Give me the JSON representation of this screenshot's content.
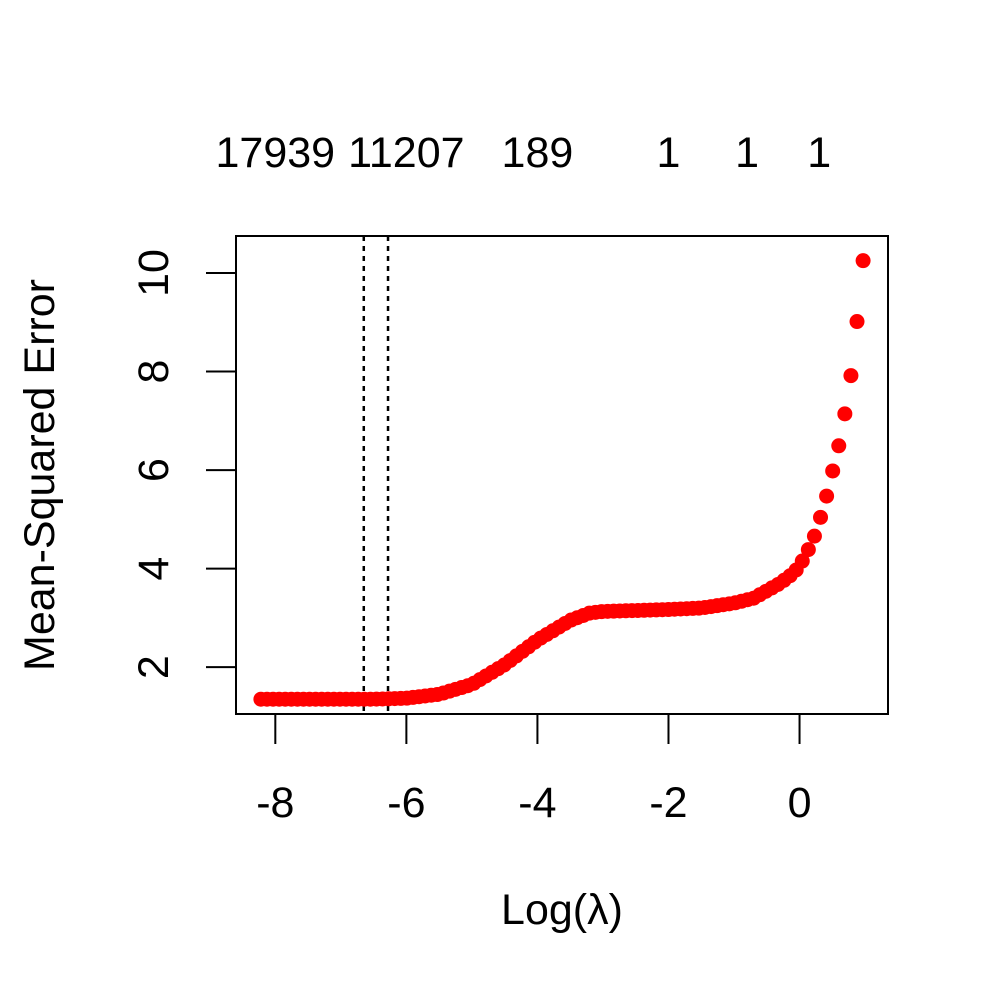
{
  "chart_data": {
    "type": "scatter",
    "xlabel": "Log(λ)",
    "ylabel": "Mean-Squared Error",
    "xlim": [
      -8.6,
      1.35
    ],
    "ylim": [
      1.05,
      10.75
    ],
    "x_ticks": [
      -8,
      -6,
      -4,
      -2,
      0
    ],
    "x_tick_labels": [
      "-8",
      "-6",
      "-4",
      "-2",
      "0"
    ],
    "y_ticks": [
      2,
      4,
      6,
      8,
      10
    ],
    "y_tick_labels": [
      "2",
      "4",
      "6",
      "8",
      "10"
    ],
    "top_axis_labels": [
      {
        "x": -8,
        "label": "17939"
      },
      {
        "x": -6,
        "label": "11207"
      },
      {
        "x": -4,
        "label": "189"
      },
      {
        "x": -2,
        "label": "1"
      },
      {
        "x": -0.8,
        "label": "1"
      },
      {
        "x": 0.3,
        "label": "1"
      }
    ],
    "reference_lines": [
      {
        "x": -6.65,
        "style": "dotted"
      },
      {
        "x": -6.28,
        "style": "dotted"
      }
    ],
    "point_color": "#ff0000",
    "grid": false,
    "series": [
      {
        "x_start": -8.22,
        "x_end": 0.97,
        "count": 100,
        "curve_x": [
          -8.22,
          -7.0,
          -6.5,
          -6.0,
          -5.5,
          -5.0,
          -4.5,
          -4.0,
          -3.5,
          -3.2,
          -3.0,
          -2.5,
          -2.0,
          -1.5,
          -1.0,
          -0.7,
          -0.5,
          -0.3,
          -0.1,
          0.0,
          0.1,
          0.2,
          0.3,
          0.4,
          0.5,
          0.6,
          0.7,
          0.8,
          0.88,
          0.97
        ],
        "curve_y": [
          1.35,
          1.35,
          1.35,
          1.37,
          1.45,
          1.65,
          2.05,
          2.55,
          2.95,
          3.1,
          3.13,
          3.15,
          3.17,
          3.2,
          3.3,
          3.4,
          3.55,
          3.7,
          3.9,
          4.05,
          4.3,
          4.55,
          4.95,
          5.4,
          5.95,
          6.5,
          7.2,
          8.05,
          9.05,
          10.25
        ]
      }
    ]
  }
}
